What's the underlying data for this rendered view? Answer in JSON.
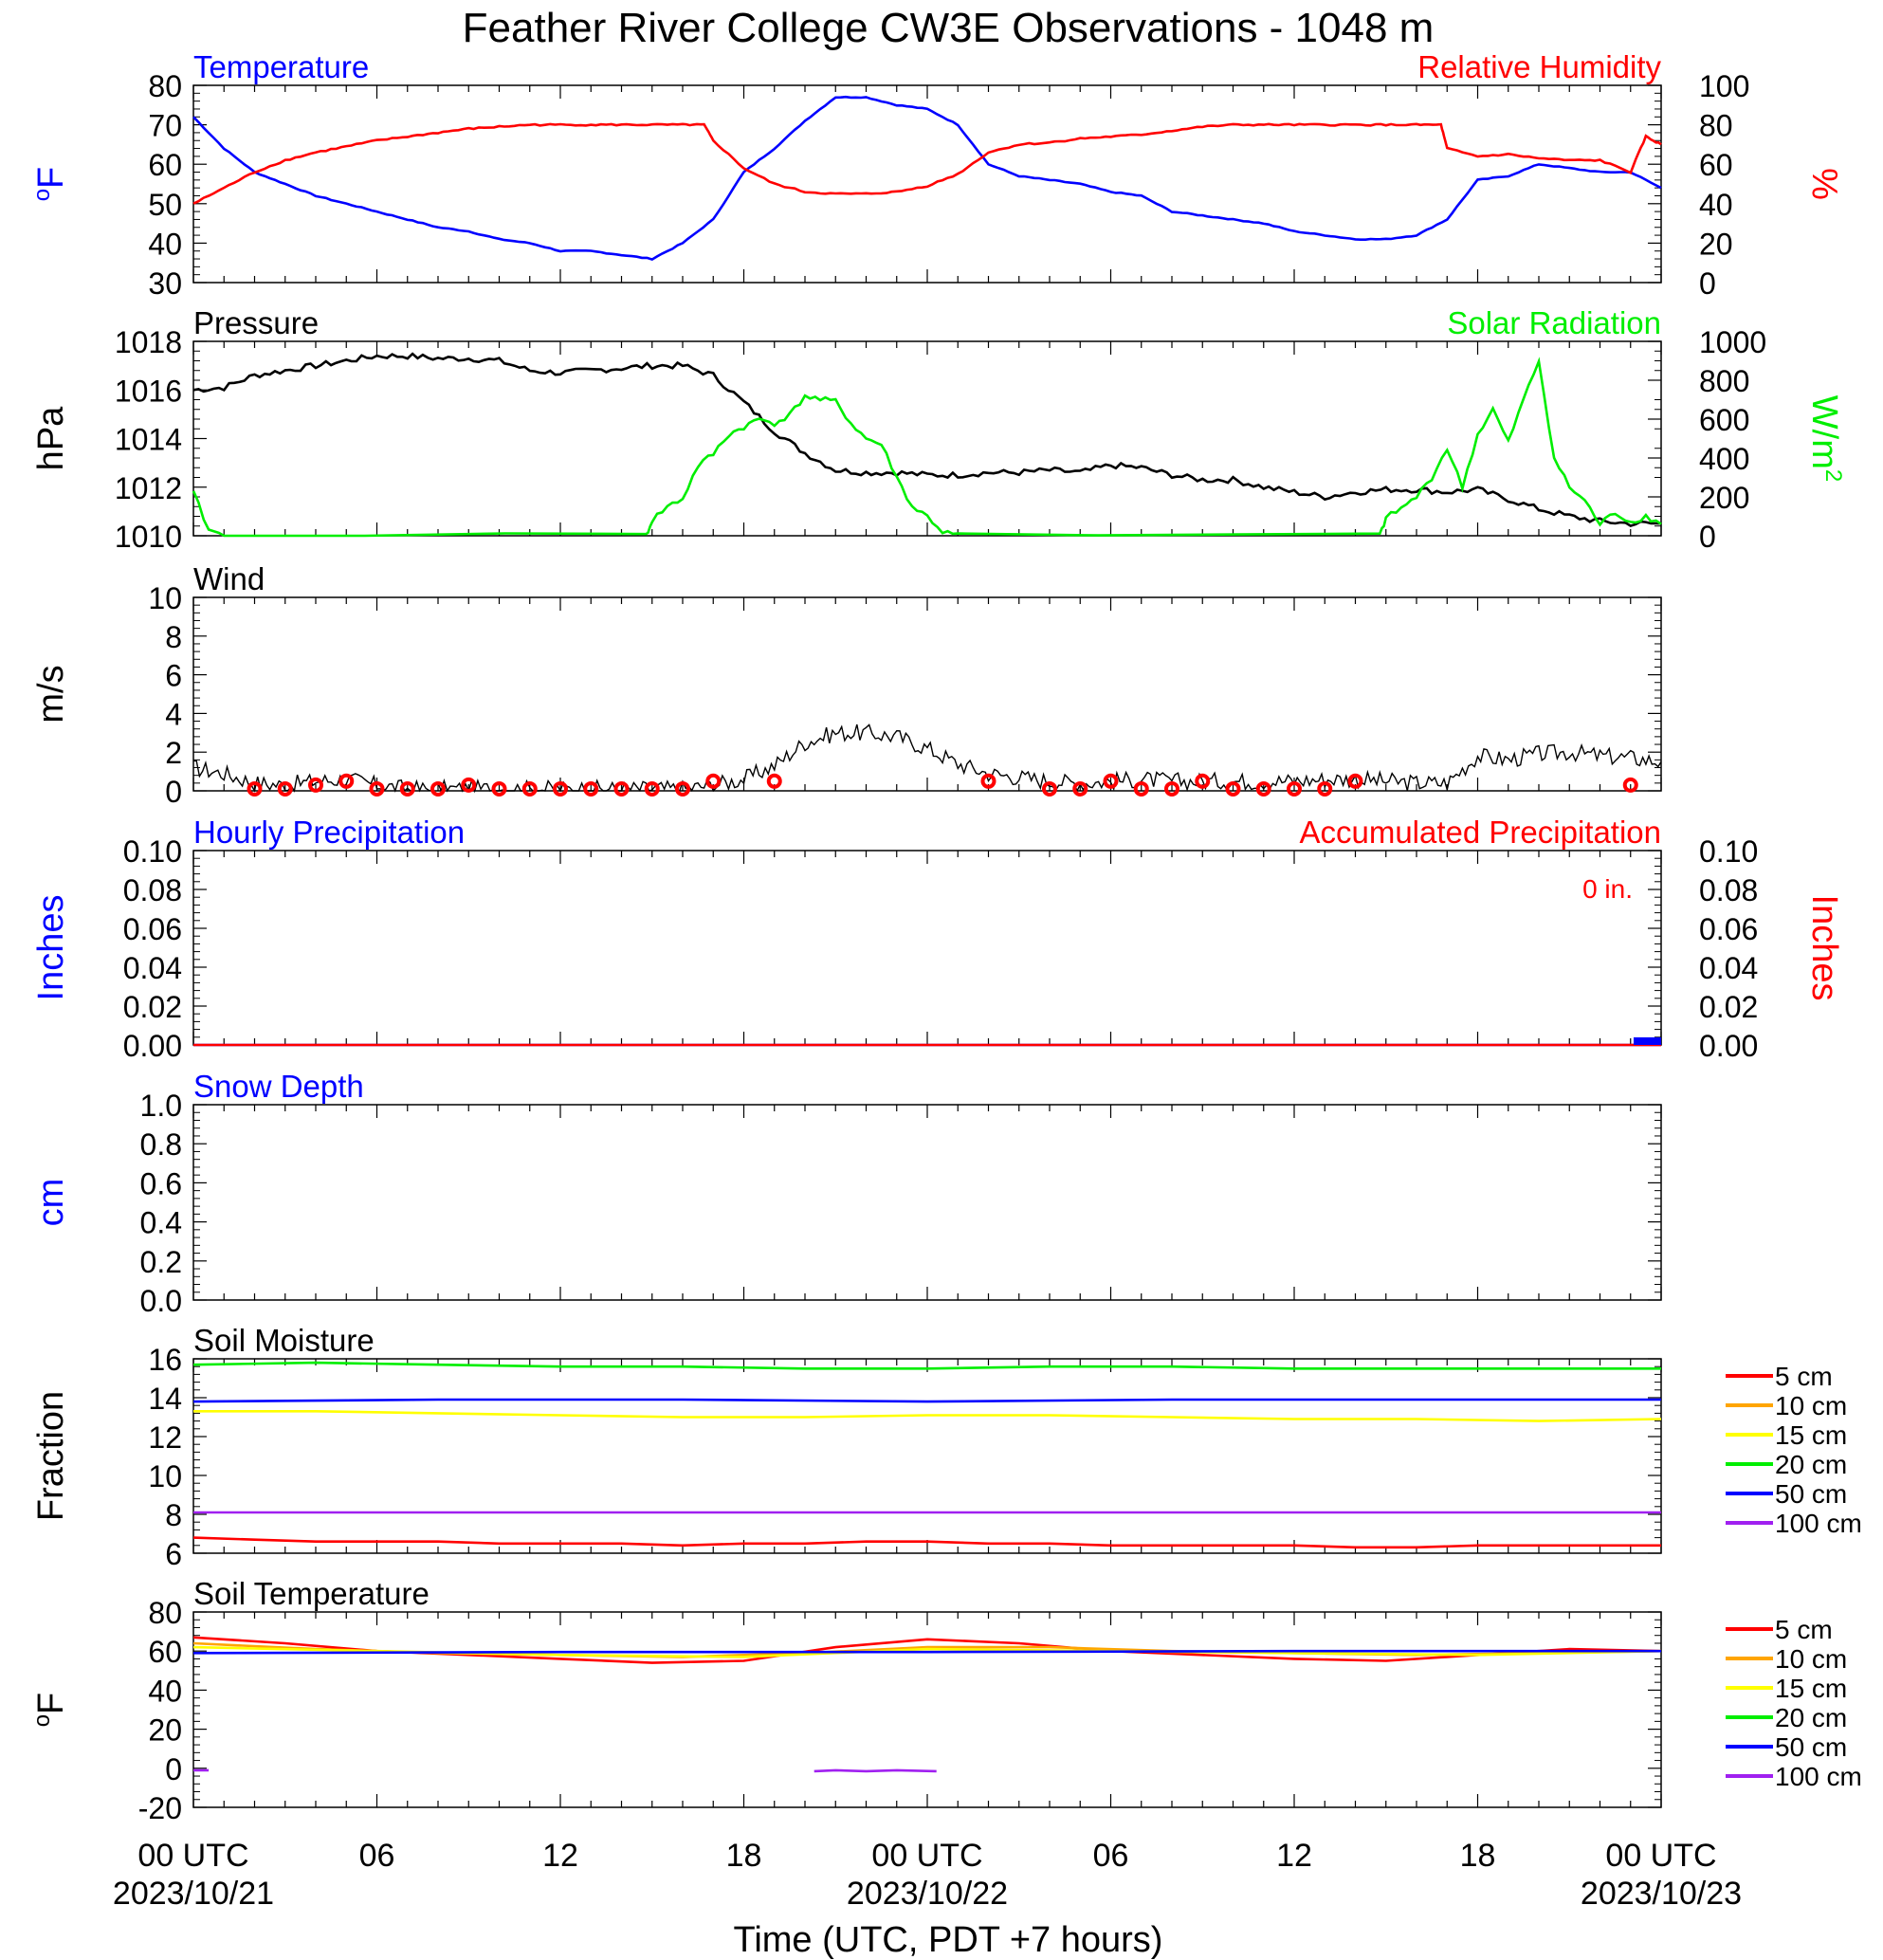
{
  "title": "Feather River College CW3E Observations - 1048 m",
  "xaxis": {
    "title": "Time (UTC, PDT +7 hours)",
    "range_hours": [
      0,
      48
    ],
    "ticks": [
      {
        "hour": 0,
        "label": "00 UTC",
        "date": "2023/10/21"
      },
      {
        "hour": 6,
        "label": "06",
        "date": ""
      },
      {
        "hour": 12,
        "label": "12",
        "date": ""
      },
      {
        "hour": 18,
        "label": "18",
        "date": ""
      },
      {
        "hour": 24,
        "label": "00 UTC",
        "date": "2023/10/22"
      },
      {
        "hour": 30,
        "label": "06",
        "date": ""
      },
      {
        "hour": 36,
        "label": "12",
        "date": ""
      },
      {
        "hour": 42,
        "label": "18",
        "date": ""
      },
      {
        "hour": 48,
        "label": "00 UTC",
        "date": "2023/10/23"
      }
    ]
  },
  "colors": {
    "blue": "#0000ff",
    "red": "#ff0000",
    "green": "#00ee00",
    "black": "#000000",
    "orange": "#ffa500",
    "yellow": "#ffff00",
    "purple": "#a020f0"
  },
  "chart_data": [
    {
      "id": "temp_rh",
      "type": "line",
      "title_left": "Temperature",
      "title_right": "Relative Humidity",
      "ylabel_left": "oF",
      "ylabel_right": "%",
      "ylim_left": [
        30,
        80
      ],
      "yticks_left": [
        "80",
        "70",
        "60",
        "50",
        "40",
        "30"
      ],
      "ylim_right": [
        0,
        100
      ],
      "yticks_right": [
        "100",
        "80",
        "60",
        "40",
        "20",
        "0"
      ],
      "series": [
        {
          "axis": "left",
          "color": "#0000ff",
          "x": [
            0,
            1,
            2,
            3,
            4,
            5,
            6,
            7,
            8,
            9,
            10,
            11,
            12,
            13,
            14,
            15,
            16,
            17,
            18,
            19,
            20,
            21,
            22,
            23,
            24,
            25,
            26,
            27,
            28,
            29,
            30,
            31,
            32,
            33,
            34,
            35,
            36,
            37,
            38,
            39,
            40,
            41,
            42,
            43,
            44,
            45,
            46,
            47,
            48
          ],
          "y": [
            72,
            64,
            58,
            55,
            52,
            50,
            48,
            46,
            44,
            43,
            41,
            40,
            38,
            38,
            37,
            36,
            40,
            46,
            58,
            64,
            71,
            77,
            77,
            75,
            74,
            70,
            60,
            57,
            56,
            55,
            53,
            52,
            48,
            47,
            46,
            45,
            43,
            42,
            41,
            41,
            42,
            46,
            56,
            57,
            60,
            59,
            58,
            58,
            54
          ]
        },
        {
          "axis": "right",
          "color": "#ff0000",
          "x": [
            0,
            1,
            2,
            3,
            4,
            5,
            6,
            7,
            8,
            9,
            10,
            11,
            12,
            13,
            14,
            15,
            16,
            16.7,
            17,
            18,
            19,
            20,
            21,
            22,
            23,
            24,
            25,
            26,
            27,
            28,
            29,
            30,
            31,
            32,
            33,
            34,
            35,
            36,
            37,
            38,
            39,
            40,
            40.8,
            41,
            42,
            43,
            44,
            45,
            46,
            47,
            47.5,
            48
          ],
          "y": [
            40,
            48,
            56,
            62,
            66,
            69,
            72,
            74,
            76,
            78,
            79,
            80,
            80,
            80,
            80,
            80,
            80,
            80,
            72,
            58,
            50,
            46,
            45,
            45,
            46,
            49,
            55,
            66,
            70,
            71,
            73,
            74,
            75,
            77,
            79,
            80,
            80,
            80,
            80,
            80,
            80,
            80,
            80,
            68,
            64,
            65,
            63,
            62,
            62,
            56,
            74,
            70
          ]
        }
      ]
    },
    {
      "id": "pres_solar",
      "type": "line",
      "title_left": "Pressure",
      "title_right": "Solar Radiation",
      "ylabel_left": "hPa",
      "ylabel_right": "W/m2",
      "ylim_left": [
        1010,
        1018
      ],
      "yticks_left": [
        "1018",
        "1016",
        "1014",
        "1012",
        "1010"
      ],
      "ylim_right": [
        0,
        1000
      ],
      "yticks_right": [
        "1000",
        "800",
        "600",
        "400",
        "200",
        "0"
      ],
      "series": [
        {
          "axis": "left",
          "color": "#000000",
          "x": [
            0,
            1,
            2,
            3,
            4,
            5,
            6,
            7,
            8,
            9,
            10,
            11,
            12,
            13,
            14,
            15,
            16,
            17,
            18,
            19,
            20,
            21,
            22,
            23,
            24,
            25,
            26,
            27,
            28,
            29,
            30,
            31,
            32,
            33,
            34,
            35,
            36,
            37,
            38,
            39,
            40,
            41,
            42,
            43,
            44,
            45,
            46,
            47,
            48
          ],
          "y": [
            1016,
            1016.1,
            1016.6,
            1016.8,
            1017,
            1017.2,
            1017.4,
            1017.4,
            1017.3,
            1017.3,
            1017.2,
            1016.8,
            1016.7,
            1016.8,
            1016.9,
            1017,
            1017,
            1016.6,
            1015.5,
            1014.3,
            1013.4,
            1012.7,
            1012.6,
            1012.6,
            1012.5,
            1012.5,
            1012.6,
            1012.6,
            1012.7,
            1012.6,
            1012.9,
            1012.8,
            1012.5,
            1012.3,
            1012.3,
            1012,
            1011.8,
            1011.6,
            1011.8,
            1011.9,
            1011.9,
            1011.8,
            1011.9,
            1011.5,
            1011.1,
            1010.8,
            1010.6,
            1010.5,
            1010.5
          ]
        },
        {
          "axis": "right",
          "color": "#00ee00",
          "x": [
            0,
            0.5,
            1,
            14.8,
            15,
            15.5,
            16,
            16.5,
            17,
            17.5,
            18,
            18.5,
            19,
            19.5,
            20,
            20.5,
            21,
            21.5,
            22,
            22.5,
            23,
            23.5,
            24,
            24.5,
            25,
            38.8,
            39,
            39.5,
            40,
            40.5,
            41,
            41.5,
            42,
            42.5,
            43,
            43.5,
            44,
            44.5,
            45,
            45.5,
            46,
            46.5,
            47,
            47.5,
            48
          ],
          "y": [
            220,
            30,
            0,
            0,
            80,
            150,
            190,
            360,
            420,
            520,
            560,
            600,
            580,
            620,
            720,
            700,
            690,
            580,
            500,
            470,
            300,
            150,
            100,
            20,
            0,
            0,
            90,
            140,
            200,
            300,
            450,
            250,
            520,
            650,
            480,
            700,
            900,
            400,
            250,
            180,
            60,
            120,
            70,
            100,
            60
          ]
        }
      ]
    },
    {
      "id": "wind",
      "type": "line",
      "title_left": "Wind",
      "ylabel_left": "m/s",
      "ylim_left": [
        0,
        10
      ],
      "yticks_left": [
        "10",
        "8",
        "6",
        "4",
        "2",
        "0"
      ],
      "series": [
        {
          "axis": "left",
          "color": "#000000",
          "x": [
            0,
            1,
            2,
            3,
            4,
            5,
            6,
            7,
            8,
            9,
            10,
            11,
            12,
            13,
            14,
            15,
            16,
            17,
            18,
            19,
            20,
            21,
            22,
            23,
            24,
            25,
            26,
            27,
            28,
            29,
            30,
            31,
            32,
            33,
            34,
            35,
            36,
            37,
            38,
            39,
            40,
            41,
            42,
            43,
            44,
            45,
            46,
            47,
            48
          ],
          "y": [
            1.2,
            0.9,
            0.4,
            0.3,
            0.5,
            0.6,
            0.3,
            0.1,
            0.1,
            0.1,
            0.1,
            0.1,
            0.1,
            0.1,
            0.1,
            0.1,
            0.1,
            0.3,
            0.6,
            1.3,
            2.5,
            3,
            3,
            2.8,
            2.2,
            1.4,
            0.9,
            0.7,
            0.5,
            0.4,
            0.5,
            0.6,
            0.5,
            0.5,
            0.5,
            0.5,
            0.5,
            0.6,
            0.6,
            0.5,
            0.4,
            0.4,
            1.8,
            1.6,
            1.9,
            2,
            1.8,
            1.7,
            1.5
          ]
        }
      ],
      "markers": {
        "color": "#ff0000",
        "x": [
          2,
          3,
          4,
          5,
          6,
          7,
          8,
          9,
          10,
          11,
          12,
          13,
          14,
          15,
          16,
          17,
          19,
          26,
          28,
          29,
          30,
          31,
          32,
          33,
          34,
          35,
          36,
          37,
          38,
          47
        ],
        "y": [
          0.1,
          0.1,
          0.3,
          0.5,
          0.1,
          0.1,
          0.1,
          0.3,
          0.1,
          0.1,
          0.1,
          0.1,
          0.1,
          0.1,
          0.1,
          0.5,
          0.5,
          0.5,
          0.1,
          0.1,
          0.5,
          0.1,
          0.1,
          0.5,
          0.1,
          0.1,
          0.1,
          0.1,
          0.5,
          0.3
        ]
      }
    },
    {
      "id": "precip",
      "type": "line",
      "title_left": "Hourly Precipitation",
      "title_right": "Accumulated Precipitation",
      "annotation": "0 in.",
      "ylabel_left": "Inches",
      "ylabel_right": "Inches",
      "ylim_left": [
        0,
        0.1
      ],
      "yticks_left": [
        "0.10",
        "0.08",
        "0.06",
        "0.04",
        "0.02",
        "0.00"
      ],
      "ylim_right": [
        0,
        0.1
      ],
      "yticks_right": [
        "0.10",
        "0.08",
        "0.06",
        "0.04",
        "0.02",
        "0.00"
      ],
      "series": [
        {
          "axis": "left",
          "color": "#0000ff",
          "x": [
            0,
            48
          ],
          "y": [
            0,
            0
          ]
        },
        {
          "axis": "right",
          "color": "#ff0000",
          "x": [
            0,
            48
          ],
          "y": [
            0,
            0
          ]
        }
      ]
    },
    {
      "id": "snow",
      "type": "line",
      "title_left": "Snow Depth",
      "ylabel_left": "cm",
      "ylim_left": [
        0,
        1
      ],
      "yticks_left": [
        "1.0",
        "0.8",
        "0.6",
        "0.4",
        "0.2",
        "0.0"
      ],
      "series": []
    },
    {
      "id": "soil_moist",
      "type": "line",
      "title_left": "Soil Moisture",
      "ylabel_left": "Fraction",
      "ylim_left": [
        6,
        16
      ],
      "yticks_left": [
        "16",
        "14",
        "12",
        "10",
        "8",
        "6"
      ],
      "legend": [
        "5 cm",
        "10 cm",
        "15 cm",
        "20 cm",
        "50 cm",
        "100 cm"
      ],
      "series": [
        {
          "name": "5 cm",
          "color": "#ff0000",
          "x": [
            0,
            2,
            4,
            6,
            8,
            10,
            12,
            14,
            16,
            18,
            20,
            22,
            24,
            26,
            28,
            30,
            32,
            34,
            36,
            38,
            40,
            42,
            44,
            46,
            48
          ],
          "y": [
            6.8,
            6.7,
            6.6,
            6.6,
            6.6,
            6.5,
            6.5,
            6.5,
            6.4,
            6.5,
            6.5,
            6.6,
            6.6,
            6.5,
            6.5,
            6.4,
            6.4,
            6.4,
            6.4,
            6.3,
            6.3,
            6.4,
            6.4,
            6.4,
            6.4
          ]
        },
        {
          "name": "15 cm",
          "color": "#ffff00",
          "x": [
            0,
            4,
            8,
            12,
            16,
            20,
            24,
            28,
            32,
            36,
            40,
            44,
            48
          ],
          "y": [
            13.3,
            13.3,
            13.2,
            13.1,
            13.0,
            13.0,
            13.1,
            13.1,
            13.0,
            12.9,
            12.9,
            12.8,
            12.9
          ]
        },
        {
          "name": "20 cm",
          "color": "#00ee00",
          "x": [
            0,
            4,
            8,
            12,
            16,
            20,
            24,
            28,
            32,
            36,
            40,
            44,
            48
          ],
          "y": [
            15.7,
            15.8,
            15.7,
            15.6,
            15.6,
            15.5,
            15.5,
            15.6,
            15.6,
            15.5,
            15.5,
            15.5,
            15.5
          ]
        },
        {
          "name": "50 cm",
          "color": "#0000ff",
          "x": [
            0,
            8,
            16,
            24,
            32,
            40,
            48
          ],
          "y": [
            13.8,
            13.9,
            13.9,
            13.8,
            13.9,
            13.9,
            13.9
          ]
        },
        {
          "name": "100 cm",
          "color": "#a020f0",
          "x": [
            0,
            48
          ],
          "y": [
            8.1,
            8.1
          ]
        }
      ]
    },
    {
      "id": "soil_temp",
      "type": "line",
      "title_left": "Soil Temperature",
      "ylabel_left": "oF",
      "ylim_left": [
        -20,
        80
      ],
      "yticks_left": [
        "80",
        "60",
        "40",
        "20",
        "0",
        "-20"
      ],
      "legend": [
        "5 cm",
        "10 cm",
        "15 cm",
        "20 cm",
        "50 cm",
        "100 cm"
      ],
      "series": [
        {
          "name": "5 cm",
          "color": "#ff0000",
          "x": [
            0,
            3,
            6,
            9,
            12,
            15,
            18,
            21,
            24,
            27,
            30,
            33,
            36,
            39,
            42,
            45,
            48
          ],
          "y": [
            67,
            64,
            60,
            58,
            56,
            54,
            55,
            62,
            66,
            64,
            60,
            58,
            56,
            55,
            58,
            61,
            60
          ]
        },
        {
          "name": "10 cm",
          "color": "#ffa500",
          "x": [
            0,
            4,
            8,
            12,
            16,
            20,
            24,
            28,
            32,
            36,
            40,
            44,
            48
          ],
          "y": [
            64,
            61,
            59,
            58,
            57,
            59,
            62,
            62,
            60,
            59,
            58,
            59,
            60
          ]
        },
        {
          "name": "15 cm",
          "color": "#ffff00",
          "x": [
            0,
            6,
            12,
            18,
            24,
            30,
            36,
            42,
            48
          ],
          "y": [
            62,
            60,
            58,
            57,
            61,
            60,
            59,
            58,
            60
          ]
        },
        {
          "name": "50 cm",
          "color": "#0000ff",
          "x": [
            0,
            12,
            24,
            36,
            48
          ],
          "y": [
            59,
            59.5,
            59.5,
            60,
            60
          ]
        },
        {
          "name": "100 cm",
          "color": "#a020f0",
          "x": [
            0,
            0.5
          ],
          "y": [
            -1,
            -1
          ]
        },
        {
          "name": "100 cm",
          "color": "#a020f0",
          "x": [
            20.3,
            21,
            22,
            23,
            24.3
          ],
          "y": [
            -1.5,
            -1,
            -1.5,
            -1,
            -1.5
          ]
        }
      ]
    }
  ]
}
